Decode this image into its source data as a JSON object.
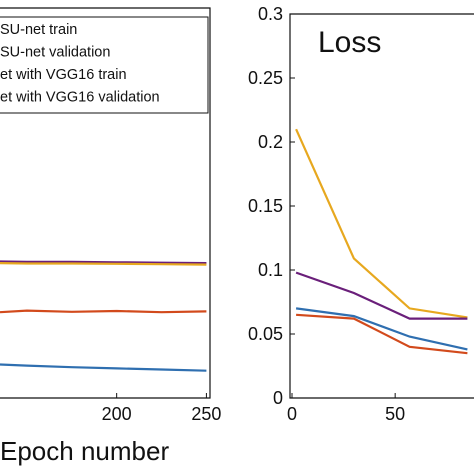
{
  "colors": {
    "blue": "#2f6fb0",
    "red": "#d24a1c",
    "purple": "#6a1f7a",
    "orange": "#e7a81f",
    "axis": "#111111"
  },
  "chart_data": [
    {
      "type": "line",
      "title": "",
      "xlabel": "Epoch number",
      "ylabel": "",
      "xlim": [
        135,
        252
      ],
      "ylim": [
        0,
        1
      ],
      "xticks": [
        "200",
        "250"
      ],
      "grid": false,
      "legend_placement": "top-left (cut off)",
      "legend": [
        "SU-net train",
        "SU-net validation",
        "et with VGG16 train",
        "et with VGG16 validation"
      ],
      "series": [
        {
          "name": "SU-net train",
          "color": "#2f6fb0",
          "x": [
            135,
            150,
            175,
            200,
            225,
            250
          ],
          "y": [
            0.086,
            0.083,
            0.079,
            0.076,
            0.073,
            0.07
          ]
        },
        {
          "name": "SU-net validation",
          "color": "#d24a1c",
          "x": [
            135,
            150,
            175,
            200,
            225,
            250
          ],
          "y": [
            0.22,
            0.224,
            0.221,
            0.223,
            0.22,
            0.222
          ]
        },
        {
          "name": "et with VGG16 train",
          "color": "#6a1f7a",
          "x": [
            135,
            150,
            175,
            200,
            225,
            250
          ],
          "y": [
            0.35,
            0.349,
            0.349,
            0.348,
            0.347,
            0.346
          ]
        },
        {
          "name": "et with VGG16 validation",
          "color": "#e7a81f",
          "x": [
            135,
            150,
            175,
            200,
            225,
            250
          ],
          "y": [
            0.346,
            0.345,
            0.345,
            0.344,
            0.343,
            0.342
          ]
        }
      ]
    },
    {
      "type": "line",
      "title": "Loss",
      "xlabel": "",
      "ylabel": "",
      "xlim": [
        0,
        95
      ],
      "ylim": [
        0,
        0.3
      ],
      "xticks": [
        "0",
        "50"
      ],
      "yticks": [
        "0",
        "0.05",
        "0.1",
        "0.15",
        "0.2",
        "0.25",
        "0.3"
      ],
      "grid": false,
      "series": [
        {
          "color": "#e7a81f",
          "x": [
            2,
            30,
            57,
            85
          ],
          "y": [
            0.21,
            0.109,
            0.07,
            0.063
          ]
        },
        {
          "color": "#6a1f7a",
          "x": [
            2,
            30,
            57,
            85
          ],
          "y": [
            0.098,
            0.082,
            0.062,
            0.062
          ]
        },
        {
          "color": "#2f6fb0",
          "x": [
            2,
            30,
            57,
            85
          ],
          "y": [
            0.07,
            0.064,
            0.048,
            0.038
          ]
        },
        {
          "color": "#d24a1c",
          "x": [
            2,
            30,
            57,
            85
          ],
          "y": [
            0.065,
            0.062,
            0.04,
            0.035
          ]
        }
      ]
    }
  ]
}
